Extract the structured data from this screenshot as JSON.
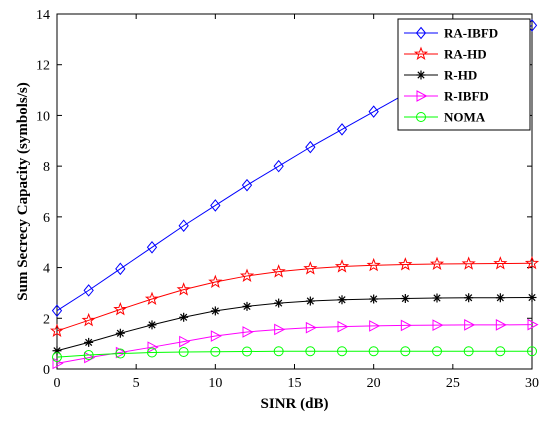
{
  "chart_data": {
    "type": "line",
    "xlabel": "SINR (dB)",
    "ylabel": "Sum Secrecy Capacity (symbols/s)",
    "xlim": [
      0,
      30
    ],
    "ylim": [
      0,
      14
    ],
    "xticks": [
      0,
      5,
      10,
      15,
      20,
      25,
      30
    ],
    "yticks": [
      0,
      2,
      4,
      6,
      8,
      10,
      12,
      14
    ],
    "grid": false,
    "legend_position": "top-right",
    "x": [
      0,
      2,
      4,
      6,
      8,
      10,
      12,
      14,
      16,
      18,
      20,
      22,
      24,
      26,
      28,
      30
    ],
    "series": [
      {
        "name": "RA-IBFD",
        "color": "#0000ff",
        "marker": "diamond",
        "values": [
          2.3,
          3.1,
          3.95,
          4.8,
          5.65,
          6.45,
          7.25,
          8.0,
          8.75,
          9.45,
          10.15,
          10.85,
          11.55,
          12.25,
          12.9,
          13.55
        ]
      },
      {
        "name": "RA-HD",
        "color": "#ff0000",
        "marker": "star",
        "values": [
          1.5,
          1.92,
          2.35,
          2.76,
          3.13,
          3.43,
          3.67,
          3.84,
          3.96,
          4.04,
          4.09,
          4.12,
          4.14,
          4.15,
          4.16,
          4.17
        ]
      },
      {
        "name": "R-HD",
        "color": "#000000",
        "marker": "asterisk",
        "values": [
          0.72,
          1.05,
          1.41,
          1.74,
          2.04,
          2.29,
          2.47,
          2.6,
          2.68,
          2.73,
          2.76,
          2.78,
          2.8,
          2.81,
          2.81,
          2.82
        ]
      },
      {
        "name": "R-IBFD",
        "color": "#ff00ff",
        "marker": "triangle-right",
        "values": [
          0.22,
          0.45,
          0.65,
          0.86,
          1.08,
          1.3,
          1.46,
          1.56,
          1.63,
          1.67,
          1.7,
          1.72,
          1.73,
          1.74,
          1.74,
          1.75
        ]
      },
      {
        "name": "NOMA",
        "color": "#00ff00",
        "marker": "circle",
        "values": [
          0.47,
          0.55,
          0.61,
          0.65,
          0.67,
          0.68,
          0.69,
          0.7,
          0.7,
          0.7,
          0.7,
          0.7,
          0.7,
          0.7,
          0.7,
          0.7
        ]
      }
    ]
  }
}
